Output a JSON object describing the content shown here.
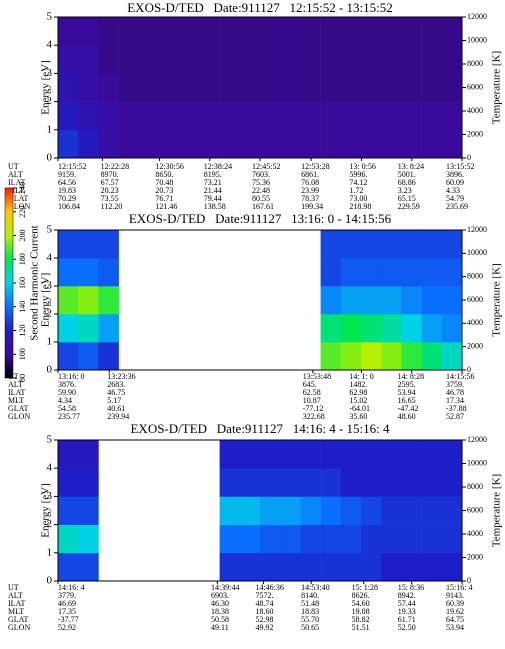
{
  "chart_data": [
    {
      "type": "heatmap",
      "title": "EXOS-D/TED   Date:911127   12:15:52 - 13:15:52",
      "ylabel": "Energy [eV]",
      "y2label": "Temperature [K]",
      "ylim": [
        0,
        5
      ],
      "yticks": [
        0,
        1,
        2,
        3,
        4,
        5
      ],
      "y2lim": [
        0,
        12000
      ],
      "y2ticks": [
        0,
        2000,
        4000,
        6000,
        8000,
        10000,
        12000
      ],
      "z": [
        [
          125,
          115,
          105,
          100,
          100,
          100,
          100,
          100,
          100,
          100,
          100,
          100,
          100,
          100,
          100,
          100,
          100,
          100,
          100,
          100
        ],
        [
          115,
          110,
          105,
          100,
          100,
          100,
          100,
          100,
          100,
          100,
          100,
          100,
          100,
          100,
          100,
          100,
          100,
          100,
          100,
          100
        ],
        [
          110,
          105,
          100,
          98,
          98,
          98,
          98,
          98,
          98,
          98,
          98,
          98,
          98,
          98,
          98,
          98,
          98,
          98,
          98,
          98
        ],
        [
          105,
          105,
          98,
          98,
          98,
          98,
          98,
          98,
          98,
          98,
          98,
          98,
          98,
          98,
          98,
          98,
          98,
          98,
          98,
          98
        ],
        [
          100,
          100,
          98,
          98,
          98,
          98,
          98,
          98,
          98,
          98,
          98,
          98,
          98,
          98,
          98,
          98,
          98,
          98,
          98,
          98
        ]
      ],
      "table": [
        {
          "label": "UT",
          "values": [
            "12:15:52",
            "12:22:28",
            "12:30:56",
            "12:38:24",
            "12:45:52",
            "12:53:28",
            "13: 0:56",
            "13: 8:24",
            "13:15:52"
          ]
        },
        {
          "label": "ALT",
          "values": [
            "9159.",
            "8970.",
            "8650.",
            "8195.",
            "7603.",
            "6861.",
            "5996.",
            "5001.",
            "3896."
          ]
        },
        {
          "label": "ILAT",
          "values": [
            "64.56",
            "67.57",
            "70.48",
            "73.21",
            "75.36",
            "76.08",
            "74.12",
            "68.86",
            "60.09"
          ]
        },
        {
          "label": "MLT",
          "values": [
            "19.83",
            "20.23",
            "20.73",
            "21.44",
            "22.48",
            "23.99",
            "1.72",
            "3.23",
            "4.33"
          ]
        },
        {
          "label": "GLAT",
          "values": [
            "70.29",
            "73.55",
            "76.71",
            "79.44",
            "80.55",
            "78.37",
            "73.00",
            "65.15",
            "54.79"
          ]
        },
        {
          "label": "GLON",
          "values": [
            "106.84",
            "112.20",
            "121.46",
            "138.58",
            "167.61",
            "199.34",
            "218.98",
            "229.59",
            "235.69"
          ]
        }
      ]
    },
    {
      "type": "heatmap",
      "title": "EXOS-D/TED   Date:911127   13:16: 0 - 14:15:56",
      "ylabel": "Energy [eV]",
      "y2label": "Temperature [K]",
      "ylim": [
        0,
        5
      ],
      "yticks": [
        0,
        1,
        2,
        3,
        4,
        5
      ],
      "y2lim": [
        0,
        12000
      ],
      "y2ticks": [
        0,
        2000,
        4000,
        6000,
        8000,
        10000,
        12000
      ],
      "z": [
        [
          130,
          135,
          125,
          null,
          null,
          null,
          null,
          null,
          null,
          null,
          null,
          null,
          null,
          190,
          195,
          200,
          195,
          185,
          175,
          165
        ],
        [
          160,
          165,
          150,
          null,
          null,
          null,
          null,
          null,
          null,
          null,
          null,
          null,
          null,
          175,
          180,
          175,
          170,
          160,
          150,
          145
        ],
        [
          190,
          195,
          185,
          null,
          null,
          null,
          null,
          null,
          null,
          null,
          null,
          null,
          null,
          145,
          150,
          150,
          150,
          145,
          140,
          140
        ],
        [
          140,
          140,
          135,
          null,
          null,
          null,
          null,
          null,
          null,
          null,
          null,
          null,
          null,
          130,
          135,
          135,
          135,
          135,
          135,
          135
        ],
        [
          130,
          130,
          130,
          null,
          null,
          null,
          null,
          null,
          null,
          null,
          null,
          null,
          null,
          130,
          130,
          130,
          130,
          130,
          130,
          130
        ]
      ],
      "table": [
        {
          "label": "UT",
          "values": [
            "13:16: 0",
            "13:23:36",
            "13:53:48",
            "14: 1: 0",
            "14: 8:28",
            "14:15:56"
          ]
        },
        {
          "label": "ALT",
          "values": [
            "3876.",
            "2683.",
            "645.",
            "1482.",
            "2595.",
            "3759."
          ]
        },
        {
          "label": "ILAT",
          "values": [
            "59.90",
            "46.75",
            "62.58",
            "62.98",
            "53.94",
            "46.78"
          ]
        },
        {
          "label": "MLT",
          "values": [
            "4.34",
            "5.17",
            "10.87",
            "15.02",
            "16.65",
            "17.34"
          ]
        },
        {
          "label": "GLAT",
          "values": [
            "54.58",
            "40.61",
            "-77.12",
            "-64.01",
            "-47.42",
            "-37.88"
          ]
        },
        {
          "label": "GLON",
          "values": [
            "235.77",
            "239.94",
            "322.68",
            "35.60",
            "48.60",
            "52.87"
          ]
        }
      ]
    },
    {
      "type": "heatmap",
      "title": "EXOS-D/TED   Date:911127   14:16: 4 - 15:16: 4",
      "ylabel": "Energy [eV]",
      "y2label": "Temperature [K]",
      "ylim": [
        0,
        5
      ],
      "yticks": [
        0,
        1,
        2,
        3,
        4,
        5
      ],
      "y2lim": [
        0,
        12000
      ],
      "y2ticks": [
        0,
        2000,
        4000,
        6000,
        8000,
        10000,
        12000
      ],
      "z": [
        [
          130,
          130,
          null,
          null,
          null,
          null,
          null,
          null,
          125,
          125,
          125,
          125,
          125,
          125,
          125,
          125,
          120,
          120,
          120,
          120
        ],
        [
          165,
          160,
          null,
          null,
          null,
          null,
          null,
          null,
          140,
          140,
          135,
          135,
          130,
          130,
          130,
          125,
          125,
          125,
          125,
          125
        ],
        [
          130,
          130,
          null,
          null,
          null,
          null,
          null,
          null,
          155,
          155,
          150,
          150,
          145,
          140,
          135,
          130,
          125,
          125,
          125,
          125
        ],
        [
          120,
          120,
          null,
          null,
          null,
          null,
          null,
          null,
          125,
          125,
          125,
          125,
          125,
          125,
          120,
          120,
          120,
          120,
          120,
          120
        ],
        [
          115,
          115,
          null,
          null,
          null,
          null,
          null,
          null,
          120,
          120,
          120,
          120,
          120,
          120,
          120,
          120,
          120,
          120,
          120,
          120
        ]
      ],
      "table": [
        {
          "label": "UT",
          "values": [
            "14:16: 4",
            "14:39:44",
            "14:46:36",
            "14:53:40",
            "15: 1:28",
            "15: 8:36",
            "15:16: 4"
          ]
        },
        {
          "label": "ALT",
          "values": [
            "3779.",
            "6903.",
            "7572.",
            "8140.",
            "8626.",
            "8942.",
            "9143."
          ]
        },
        {
          "label": "ILAT",
          "values": [
            "46.69",
            "46.30",
            "48.74",
            "51.48",
            "54.60",
            "57.44",
            "60.39"
          ]
        },
        {
          "label": "MLT",
          "values": [
            "17.35",
            "18.38",
            "18.60",
            "18.83",
            "19.08",
            "19.33",
            "19.62"
          ]
        },
        {
          "label": "GLAT",
          "values": [
            "-37.77",
            "50.58",
            "52.98",
            "55.70",
            "58.82",
            "61.71",
            "64.75"
          ]
        },
        {
          "label": "GLON",
          "values": [
            "52.92",
            "49.11",
            "49.92",
            "50.65",
            "51.51",
            "52.50",
            "53.94"
          ]
        }
      ]
    },
    {
      "type": "colorbar",
      "label": "Second Harmonic Current",
      "ylim": [
        80,
        240
      ],
      "yticks": [
        80,
        100,
        120,
        140,
        160,
        180,
        200,
        220,
        240
      ],
      "colors": [
        "#000000",
        "#3c0a9a",
        "#1e1ec8",
        "#0a6eff",
        "#00d2e6",
        "#00e650",
        "#b4f000",
        "#ffc800",
        "#ff1e00"
      ]
    }
  ]
}
